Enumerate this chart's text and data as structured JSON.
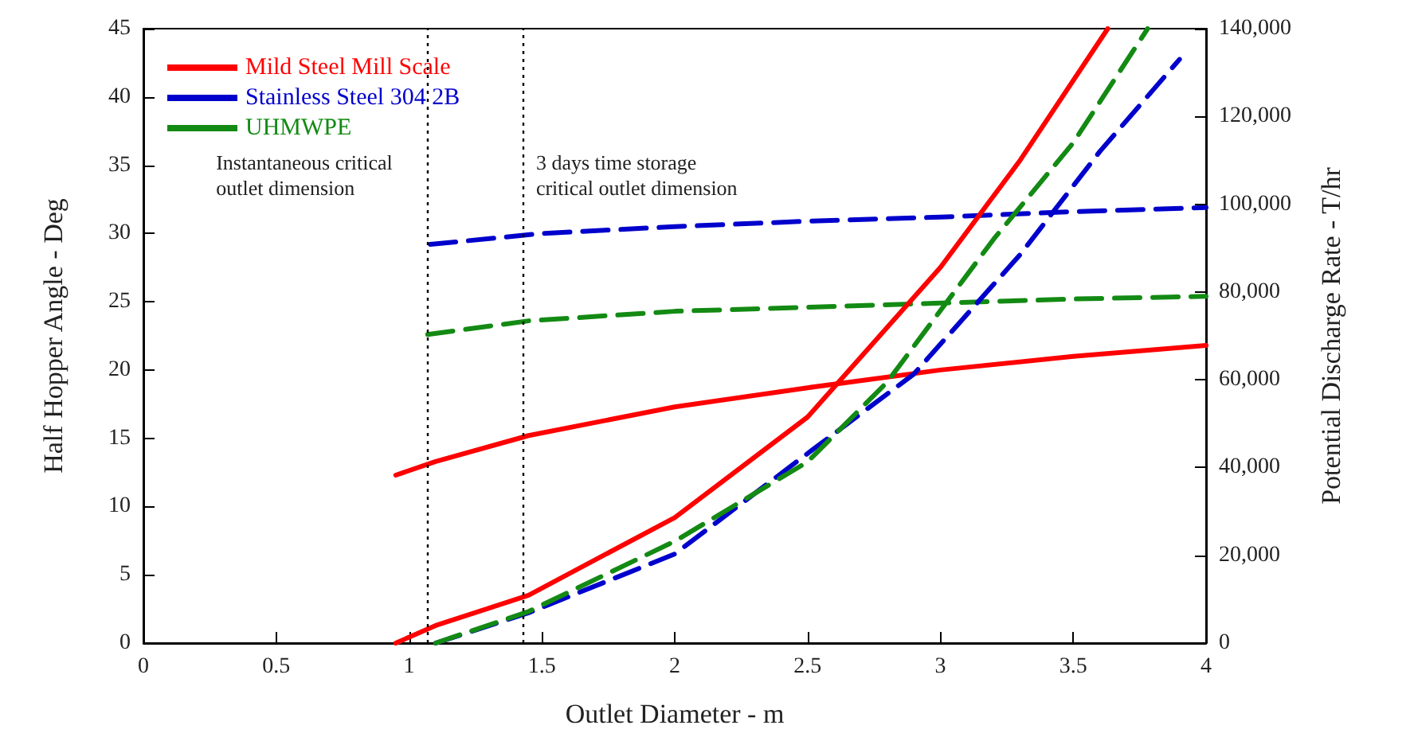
{
  "chart_data": {
    "type": "line",
    "xlabel": "Outlet Diameter - m",
    "ylabel": "Half Hopper Angle - Deg",
    "y2label": "Potential Discharge Rate - T/hr",
    "xlim": [
      0,
      4
    ],
    "xticks": [
      0,
      0.5,
      1,
      1.5,
      2,
      2.5,
      3,
      3.5,
      4
    ],
    "ylim": [
      0,
      45
    ],
    "yticks": [
      0,
      5,
      10,
      15,
      20,
      25,
      30,
      35,
      40,
      45
    ],
    "y2lim": [
      0,
      140000
    ],
    "y2ticks": [
      0,
      {
        "value": 20000,
        "label": "20,000"
      },
      {
        "value": 40000,
        "label": "40,000"
      },
      {
        "value": 60000,
        "label": "60,000"
      },
      {
        "value": 80000,
        "label": "80,000"
      },
      {
        "value": 100000,
        "label": "100,000"
      },
      {
        "value": 120000,
        "label": "120,000"
      },
      {
        "value": 140000,
        "label": "140,000"
      }
    ],
    "grid": false,
    "legend": "top left",
    "marker": "none",
    "series": [
      {
        "name": "Mild Steel Mill Scale",
        "color": "#ff0000",
        "line_style": "solid",
        "x": [
          0.95,
          1.1,
          1.45,
          2,
          2.5,
          3,
          3.5,
          4
        ],
        "values": [
          12.3,
          13.3,
          15.2,
          17.3,
          18.7,
          20,
          21,
          21.8
        ]
      },
      {
        "name": "Stainless Steel 304 2B",
        "color": "#0000cc",
        "line_style": "dashed",
        "x": [
          1.08,
          1.5,
          2,
          2.5,
          3,
          3.5,
          4
        ],
        "values": [
          29.2,
          30,
          30.5,
          30.9,
          31.2,
          31.6,
          31.9
        ]
      },
      {
        "name": "UHMWPE",
        "color": "#138a13",
        "line_style": "dashed",
        "x": [
          1.07,
          1.45,
          2,
          2.5,
          3,
          3.5,
          4
        ],
        "values": [
          22.6,
          23.6,
          24.3,
          24.6,
          24.9,
          25.2,
          25.4
        ]
      },
      {
        "color": "#ff0000",
        "line_style": "solid",
        "axis": "y2",
        "x": [
          0.95,
          1.1,
          1.45,
          2,
          2.5,
          3,
          3.3,
          3.63
        ],
        "values": [
          0,
          4000,
          10900,
          28600,
          51500,
          85600,
          110000,
          140000
        ]
      },
      {
        "color": "#0000cc",
        "line_style": "dashed",
        "axis": "y2",
        "x": [
          1.1,
          1.45,
          2,
          2.5,
          2.9,
          3.3,
          3.6,
          3.9
        ],
        "values": [
          0,
          6900,
          20300,
          43200,
          61300,
          88500,
          112000,
          133000
        ]
      },
      {
        "color": "#138a13",
        "line_style": "dashed",
        "axis": "y2",
        "x": [
          1.1,
          1.45,
          2,
          2.5,
          2.8,
          3.2,
          3.5,
          3.78
        ],
        "values": [
          0,
          7200,
          23200,
          41300,
          59500,
          92000,
          114000,
          140000
        ]
      }
    ],
    "ref_lines": [
      {
        "axis": "x",
        "value": 1.07,
        "label": "Instantaneous critical\noutlet dimension",
        "color": "#000000",
        "line_style": "dotted"
      },
      {
        "axis": "x",
        "value": 1.43,
        "label": "3 days time storage\ncritical outlet dimension",
        "color": "#000000",
        "line_style": "dotted"
      }
    ]
  }
}
